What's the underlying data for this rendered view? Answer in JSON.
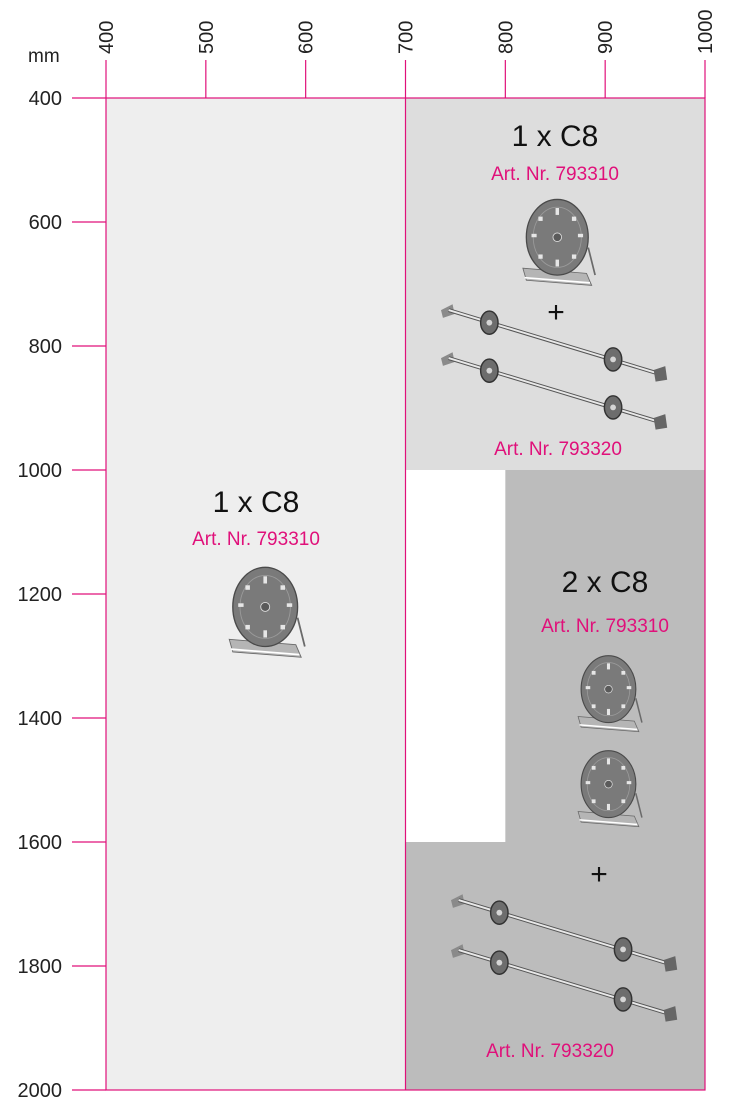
{
  "chart_data": {
    "type": "table",
    "x_axis": {
      "unit": "mm",
      "ticks": [
        "400",
        "500",
        "600",
        "700",
        "800",
        "900",
        "1000"
      ],
      "range": [
        400,
        1000
      ]
    },
    "y_axis": {
      "ticks": [
        "400",
        "600",
        "800",
        "1000",
        "1200",
        "1400",
        "1600",
        "1800",
        "2000"
      ],
      "range": [
        400,
        2000
      ]
    },
    "accent_color": "#e0107a",
    "zones": [
      {
        "x_range": [
          400,
          700
        ],
        "y_range": [
          400,
          2000
        ],
        "color": "#eeeeee",
        "quantity": "1 x C8",
        "article": "Art. Nr. 793310",
        "components": [
          "motor-disc"
        ]
      },
      {
        "x_range": [
          700,
          1000
        ],
        "y_range": [
          400,
          1000
        ],
        "color": "#dddddd",
        "quantity": "1 x C8",
        "article": "Art. Nr. 793310",
        "plus": "+",
        "shaft_article": "Art. Nr. 793320",
        "components": [
          "motor-disc",
          "shaft",
          "shaft"
        ]
      },
      {
        "x_range": [
          800,
          1000
        ],
        "y_range": [
          1000,
          1600
        ],
        "color": "#bcbcbc",
        "quantity": "2 x C8",
        "article": "Art. Nr. 793310",
        "components": [
          "motor-disc",
          "motor-disc"
        ]
      },
      {
        "x_range": [
          700,
          1000
        ],
        "y_range": [
          1600,
          2000
        ],
        "color": "#bcbcbc",
        "plus": "+",
        "shaft_article": "Art. Nr. 793320",
        "components": [
          "shaft",
          "shaft"
        ]
      }
    ]
  },
  "labels": {
    "zone_a_qty": "1 x C8",
    "zone_a_art": "Art. Nr. 793310",
    "zone_b_qty": "1 x C8",
    "zone_b_art": "Art. Nr. 793310",
    "zone_b_plus": "+",
    "zone_b_shaft_art": "Art. Nr. 793320",
    "zone_c_qty": "2 x C8",
    "zone_c_art": "Art. Nr. 793310",
    "zone_c_plus": "+",
    "zone_c_shaft_art": "Art. Nr. 793320"
  }
}
